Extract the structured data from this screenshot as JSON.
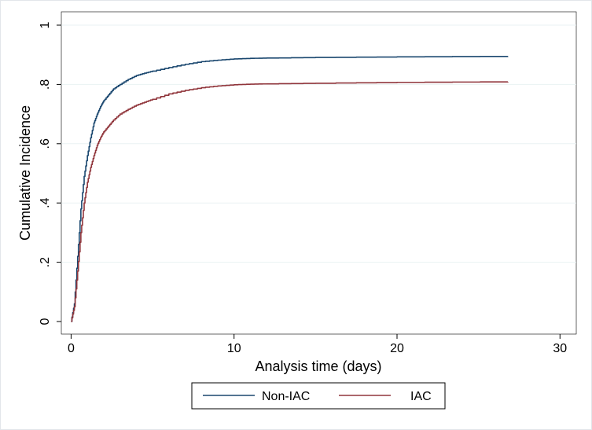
{
  "chart_data": {
    "type": "line",
    "title": "",
    "xlabel": "Analysis time (days)",
    "ylabel": "Cumulative Incidence",
    "xlim": [
      -0.6,
      31
    ],
    "ylim": [
      0,
      1
    ],
    "x_ticks": [
      0,
      10,
      20,
      30
    ],
    "x_tick_labels": [
      "0",
      "10",
      "20",
      "30"
    ],
    "y_ticks": [
      0,
      0.2,
      0.4,
      0.6,
      0.8,
      1
    ],
    "y_tick_labels": [
      "0",
      ".2",
      ".4",
      ".6",
      ".8",
      "1"
    ],
    "grid": "horizontal",
    "legend_position": "bottom",
    "series": [
      {
        "name": "Non-IAC",
        "color": "#1a476f",
        "x": [
          0,
          0.2,
          0.4,
          0.6,
          0.8,
          1.0,
          1.2,
          1.4,
          1.6,
          1.8,
          2.0,
          2.3,
          2.6,
          3.0,
          3.5,
          4.0,
          4.5,
          5.0,
          6.0,
          7.0,
          8.0,
          9.0,
          10.0,
          11.0,
          12.0,
          15.0,
          20.0,
          26.8
        ],
        "y": [
          0.0,
          0.06,
          0.22,
          0.38,
          0.49,
          0.56,
          0.62,
          0.67,
          0.7,
          0.725,
          0.745,
          0.765,
          0.785,
          0.8,
          0.817,
          0.83,
          0.838,
          0.845,
          0.857,
          0.868,
          0.877,
          0.882,
          0.886,
          0.888,
          0.889,
          0.891,
          0.893,
          0.895
        ]
      },
      {
        "name": "IAC",
        "color": "#90353b",
        "x": [
          0,
          0.2,
          0.4,
          0.6,
          0.8,
          1.0,
          1.2,
          1.4,
          1.6,
          1.8,
          2.0,
          2.3,
          2.6,
          3.0,
          3.5,
          4.0,
          4.5,
          5.0,
          6.0,
          7.0,
          8.0,
          9.0,
          10.0,
          11.0,
          12.0,
          15.0,
          20.0,
          26.8
        ],
        "y": [
          0.0,
          0.05,
          0.17,
          0.3,
          0.4,
          0.47,
          0.52,
          0.56,
          0.595,
          0.62,
          0.64,
          0.66,
          0.68,
          0.7,
          0.716,
          0.73,
          0.74,
          0.75,
          0.768,
          0.78,
          0.789,
          0.795,
          0.799,
          0.801,
          0.802,
          0.804,
          0.807,
          0.809
        ]
      }
    ]
  }
}
